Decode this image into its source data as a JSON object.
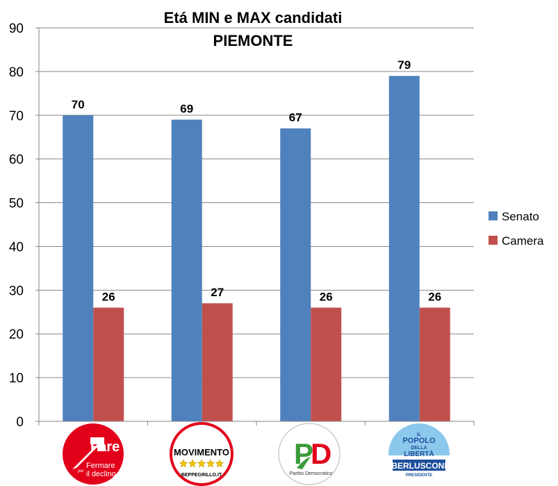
{
  "chart_data": {
    "type": "bar",
    "title": "Etá MIN e MAX candidati",
    "subtitle": "PIEMONTE",
    "categories": [
      "Fare per Fermare il declino",
      "MoVimento BeppeGrillo.it",
      "Partito Democratico",
      "Il Popolo della Libertà Berlusconi Presidente"
    ],
    "series": [
      {
        "name": "Senato",
        "color": "#4F81BD",
        "values": [
          70,
          69,
          67,
          79
        ]
      },
      {
        "name": "Camera",
        "color": "#C0504D",
        "values": [
          26,
          27,
          26,
          26
        ]
      }
    ],
    "ylim": [
      0,
      90
    ],
    "yticks": [
      0,
      10,
      20,
      30,
      40,
      50,
      60,
      70,
      80,
      90
    ],
    "grid": true,
    "legend": "right"
  },
  "logos": {
    "fare": {
      "word": "Fare",
      "small": "per",
      "line1": "Fermare",
      "line2": "il declino",
      "color": "#E2001A"
    },
    "m5s": {
      "word": "MOVIMENTO",
      "site": "BEPPEGRILLO.IT",
      "star_color": "#F2C500"
    },
    "pd": {
      "letters": "PD",
      "caption_a": "Partito",
      "caption_b": "Democratico",
      "green": "#3A9B3A",
      "red": "#E2001A"
    },
    "pdl": {
      "line1": "IL",
      "line2": "POPOLO",
      "line3": "DELLA",
      "line4": "LIBERTÀ",
      "name": "BERLUSCONI",
      "sub": "PRESIDENTE",
      "blue": "#1E4F9C"
    }
  }
}
